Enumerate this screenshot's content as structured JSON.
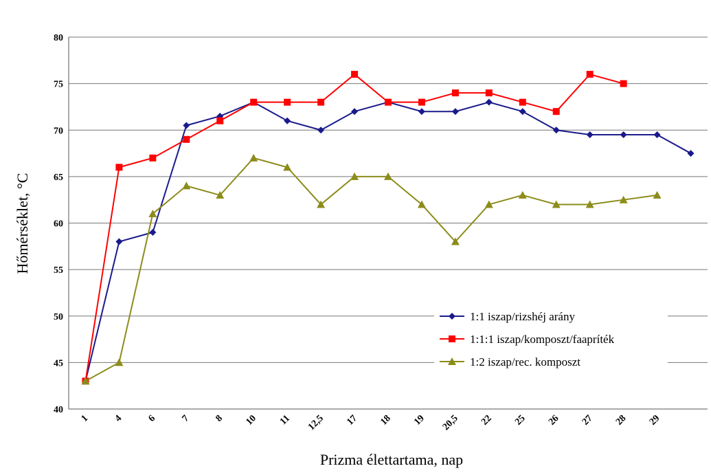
{
  "chart_data": {
    "type": "line",
    "x_label": "Prizma élettartama, nap",
    "y_label": "Hőmérséklet, °C",
    "categories": [
      "1",
      "4",
      "6",
      "7",
      "8",
      "10",
      "11",
      "12,5",
      "17",
      "18",
      "19",
      "20,5",
      "22",
      "25",
      "26",
      "27",
      "28",
      "29",
      null
    ],
    "series": [
      {
        "name": "1:1 iszap/rizshéj arány",
        "color": "#1a1a8c",
        "marker": "diamond",
        "values": [
          43,
          58,
          59,
          70.5,
          71.5,
          73,
          71,
          70,
          72,
          73,
          72,
          72,
          73,
          72,
          70,
          69.5,
          69.5,
          69.5,
          67.5
        ]
      },
      {
        "name": "1:1:1 iszap/komposzt/faapríték",
        "color": "#ff0000",
        "marker": "square",
        "values": [
          43,
          66,
          67,
          69,
          71,
          73,
          73,
          73,
          76,
          73,
          73,
          74,
          74,
          73,
          72,
          76,
          75,
          null,
          null
        ]
      },
      {
        "name": "1:2 iszap/rec. komposzt",
        "color": "#8c8c1a",
        "marker": "triangle",
        "values": [
          43,
          45,
          61,
          64,
          63,
          67,
          66,
          62,
          65,
          65,
          62,
          58,
          62,
          63,
          62,
          62,
          62.5,
          63,
          null
        ]
      }
    ],
    "ylim": [
      40,
      80
    ],
    "yticks": [
      40,
      45,
      50,
      55,
      60,
      65,
      70,
      75,
      80
    ],
    "grid": true,
    "legend": "right"
  }
}
